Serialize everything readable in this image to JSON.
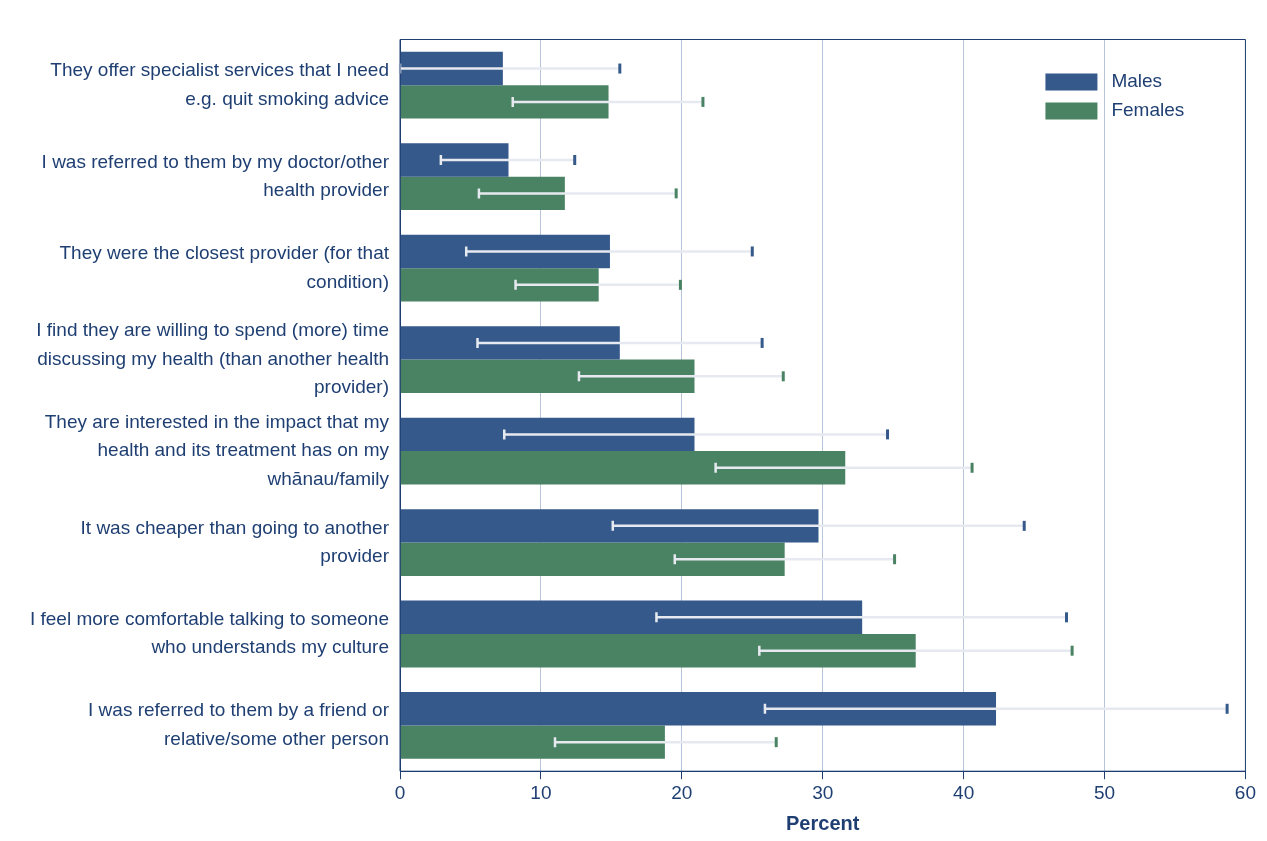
{
  "chart_data": {
    "type": "bar",
    "orientation": "horizontal",
    "xlabel": "Percent",
    "categories": [
      "They offer specialist services that I need e.g. quit smoking advice",
      "I was referred to them by my doctor/other health provider",
      "They were the closest provider (for that condition)",
      "I find they are willing to spend (more) time discussing my health (than another health provider)",
      "They are interested in the impact that my health and its treatment has on my whānau/family",
      "It was cheaper than going to another provider",
      "I feel more comfortable talking to someone who understands my culture",
      "I was referred to them by a friend or relative/some other person"
    ],
    "series": [
      {
        "name": "Males",
        "color": "#34598a",
        "values": [
          7.3,
          7.7,
          14.9,
          15.6,
          20.9,
          29.7,
          32.8,
          42.3
        ],
        "errors": [
          [
            0,
            15.6
          ],
          [
            2.9,
            12.4
          ],
          [
            4.7,
            25.0
          ],
          [
            5.5,
            25.7
          ],
          [
            7.4,
            34.6
          ],
          [
            15.1,
            44.3
          ],
          [
            18.2,
            47.3
          ],
          [
            25.9,
            58.7
          ]
        ]
      },
      {
        "name": "Females",
        "color": "#4a8264",
        "values": [
          14.8,
          11.7,
          14.1,
          20.9,
          31.6,
          27.3,
          36.6,
          18.8
        ],
        "errors": [
          [
            8.0,
            21.5
          ],
          [
            5.6,
            19.6
          ],
          [
            8.2,
            19.9
          ],
          [
            12.7,
            27.2
          ],
          [
            22.4,
            40.6
          ],
          [
            19.5,
            35.1
          ],
          [
            25.5,
            47.7
          ],
          [
            11.0,
            26.7
          ]
        ]
      }
    ],
    "xlim": [
      0,
      60
    ],
    "xticks": [
      0,
      10,
      20,
      30,
      40,
      50,
      60
    ],
    "grid": "x",
    "legend": "top right"
  }
}
